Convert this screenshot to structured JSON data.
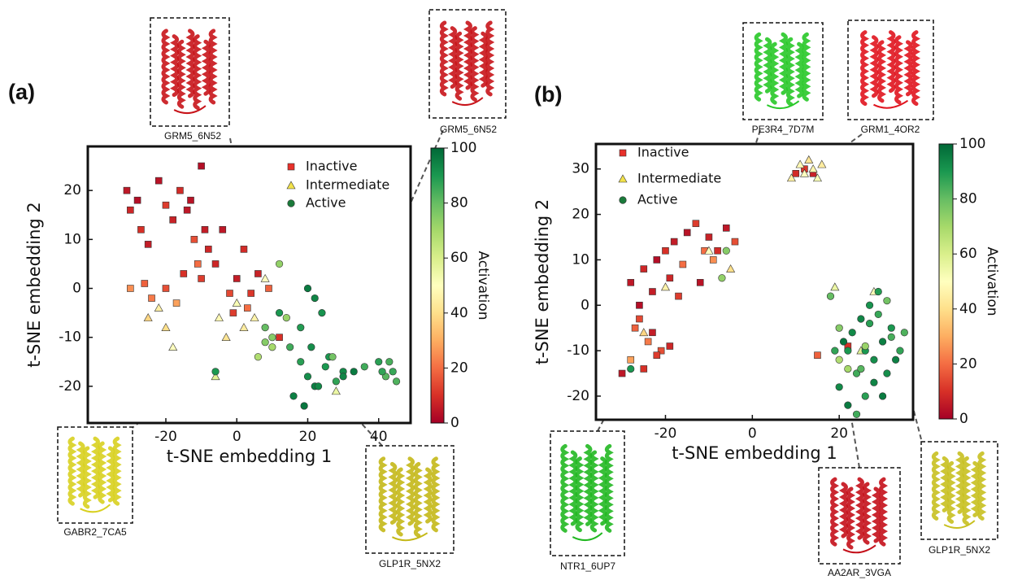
{
  "chart_data": [
    {
      "type": "scatter",
      "panel_label": "(a)",
      "xlabel": "t-SNE embedding 1",
      "ylabel": "t-SNE embedding 2",
      "xlim": [
        -42,
        49
      ],
      "ylim": [
        -27.5,
        29
      ],
      "xticks": [
        -20,
        0,
        20,
        40
      ],
      "yticks": [
        -20,
        -10,
        0,
        10,
        20
      ],
      "colormap": [
        "#a50026",
        "#d73027",
        "#f46d43",
        "#fdae61",
        "#fee08b",
        "#ffffbf",
        "#d9ef8b",
        "#a6d96a",
        "#66bd63",
        "#1a9850",
        "#006837"
      ],
      "colorbar": {
        "label": "Activation",
        "lim": [
          0,
          100
        ],
        "ticks": [
          0,
          20,
          40,
          60,
          80,
          100
        ]
      },
      "series": [
        {
          "name": "Inactive",
          "marker": "square",
          "color": "#e8302a",
          "x": [
            -31,
            -30,
            -28,
            -27,
            -25,
            -22,
            -20,
            -18,
            -16,
            -14,
            -12,
            -10,
            -9,
            -8,
            -11,
            -13,
            -30,
            -26,
            -24,
            -20,
            -17,
            -15,
            -10,
            -6,
            -2,
            0,
            2,
            4,
            6,
            9,
            12,
            -4,
            -1,
            3
          ],
          "y": [
            20,
            16,
            18,
            12,
            9,
            22,
            17,
            14,
            20,
            16,
            10,
            25,
            12,
            8,
            5,
            18,
            0,
            1,
            -2,
            0,
            -3,
            3,
            2,
            5,
            -1,
            2,
            8,
            -1,
            3,
            0,
            -10,
            12,
            -5,
            -4
          ],
          "c": [
            5,
            8,
            3,
            10,
            6,
            4,
            12,
            7,
            9,
            5,
            15,
            3,
            6,
            8,
            20,
            4,
            25,
            18,
            22,
            15,
            28,
            10,
            12,
            8,
            14,
            6,
            9,
            11,
            7,
            18,
            10,
            5,
            12,
            20
          ]
        },
        {
          "name": "Intermediate",
          "marker": "triangle",
          "color": "#f2e24a",
          "x": [
            -22,
            -20,
            -18,
            -25,
            -5,
            -3,
            0,
            2,
            5,
            8,
            28,
            -6
          ],
          "y": [
            -4,
            -8,
            -12,
            -6,
            -6,
            -10,
            -3,
            -8,
            -6,
            2,
            -21,
            -18
          ],
          "c": [
            45,
            40,
            50,
            38,
            48,
            42,
            52,
            44,
            46,
            50,
            55,
            58
          ]
        },
        {
          "name": "Active",
          "marker": "circle",
          "color": "#1a7a3a",
          "x": [
            8,
            10,
            12,
            15,
            18,
            20,
            22,
            25,
            28,
            30,
            20,
            22,
            24,
            18,
            21,
            16,
            19,
            23,
            26,
            30,
            33,
            36,
            40,
            42,
            44,
            43,
            41,
            45,
            10,
            14,
            -6,
            8,
            6,
            12,
            27
          ],
          "y": [
            -8,
            -10,
            -5,
            -12,
            -15,
            -18,
            -20,
            -16,
            -19,
            -17,
            0,
            -2,
            -5,
            -8,
            -12,
            -22,
            -24,
            -20,
            -14,
            -18,
            -17,
            -16,
            -15,
            -18,
            -17,
            -15,
            -17,
            -19,
            -12,
            -6,
            -17,
            -11,
            -14,
            5,
            -14
          ],
          "c": [
            80,
            75,
            90,
            85,
            88,
            92,
            95,
            90,
            87,
            93,
            96,
            94,
            91,
            89,
            92,
            95,
            97,
            93,
            90,
            94,
            96,
            85,
            88,
            82,
            86,
            84,
            87,
            83,
            70,
            72,
            90,
            75,
            68,
            73,
            78
          ]
        }
      ],
      "insets": [
        {
          "label": "GRM5_6N52"
        },
        {
          "label": "GRM5_6N52"
        },
        {
          "label": "GABR2_7CA5"
        },
        {
          "label": "GLP1R_5NX2"
        }
      ]
    },
    {
      "type": "scatter",
      "panel_label": "(b)",
      "xlabel": "t-SNE embedding 1",
      "ylabel": "t-SNE embedding 2",
      "xlim": [
        -36,
        37
      ],
      "ylim": [
        -25.2,
        35.5
      ],
      "xticks": [
        -20,
        0,
        20
      ],
      "yticks": [
        -20,
        -10,
        0,
        10,
        20,
        30
      ],
      "colormap": [
        "#a50026",
        "#d73027",
        "#f46d43",
        "#fdae61",
        "#fee08b",
        "#ffffbf",
        "#d9ef8b",
        "#a6d96a",
        "#66bd63",
        "#1a9850",
        "#006837"
      ],
      "colorbar": {
        "label": "Activation",
        "lim": [
          0,
          100
        ],
        "ticks": [
          0,
          20,
          40,
          60,
          80,
          100
        ]
      },
      "series": [
        {
          "name": "Inactive",
          "marker": "square",
          "color": "#e8302a",
          "x": [
            -28,
            -25,
            -22,
            -20,
            -18,
            -15,
            -13,
            -10,
            -8,
            -6,
            -4,
            -26,
            -23,
            -19,
            -16,
            -12,
            -9,
            -27,
            -24,
            -21,
            -28,
            -25,
            -22,
            -19,
            -26,
            -23,
            10,
            12,
            14,
            15,
            22,
            -30,
            -17,
            -11
          ],
          "y": [
            5,
            8,
            10,
            12,
            14,
            16,
            18,
            15,
            12,
            17,
            14,
            0,
            3,
            6,
            9,
            5,
            10,
            -5,
            -8,
            -10,
            -12,
            -14,
            -11,
            -9,
            -3,
            -6,
            29,
            30,
            29,
            -11,
            -9,
            -15,
            2,
            12
          ],
          "c": [
            5,
            8,
            3,
            10,
            6,
            4,
            12,
            7,
            9,
            5,
            15,
            3,
            6,
            8,
            20,
            4,
            25,
            18,
            22,
            15,
            28,
            10,
            12,
            8,
            14,
            6,
            9,
            11,
            7,
            18,
            10,
            5,
            12,
            20
          ]
        },
        {
          "name": "Intermediate",
          "marker": "triangle",
          "color": "#f2e24a",
          "x": [
            9,
            11,
            12,
            13,
            14,
            15,
            16,
            -5,
            -20,
            -25,
            -10,
            19,
            25,
            28
          ],
          "y": [
            28,
            31,
            29,
            32,
            30,
            28,
            31,
            8,
            4,
            -6,
            12,
            4,
            -10,
            3
          ],
          "c": [
            45,
            48,
            50,
            42,
            47,
            52,
            44,
            40,
            46,
            38,
            50,
            55,
            58,
            52
          ]
        },
        {
          "name": "Active",
          "marker": "circle",
          "color": "#1a7a3a",
          "x": [
            18,
            20,
            22,
            24,
            26,
            28,
            30,
            32,
            34,
            20,
            22,
            25,
            27,
            29,
            31,
            33,
            21,
            23,
            26,
            28,
            30,
            24,
            27,
            25,
            29,
            32,
            19,
            35,
            22,
            26,
            -28,
            -6,
            20,
            -7,
            31
          ],
          "y": [
            2,
            -5,
            -10,
            -15,
            -20,
            -12,
            -8,
            -5,
            -10,
            -18,
            -22,
            -3,
            0,
            3,
            -15,
            -12,
            -8,
            -6,
            -10,
            -17,
            -20,
            -24,
            -4,
            -14,
            -2,
            -7,
            -10,
            -6,
            -14,
            -9,
            -14,
            12,
            -12,
            6,
            1
          ],
          "c": [
            80,
            75,
            90,
            85,
            88,
            92,
            95,
            90,
            87,
            93,
            96,
            94,
            91,
            89,
            92,
            95,
            97,
            93,
            90,
            94,
            96,
            85,
            88,
            82,
            86,
            84,
            87,
            83,
            70,
            72,
            90,
            75,
            68,
            73,
            78
          ]
        }
      ],
      "insets": [
        {
          "label": "PE3R4_7D7M"
        },
        {
          "label": "GRM1_4OR2"
        },
        {
          "label": "NTR1_6UP7"
        },
        {
          "label": "AA2AR_3VGA"
        },
        {
          "label": "GLP1R_5NX2"
        }
      ]
    }
  ]
}
